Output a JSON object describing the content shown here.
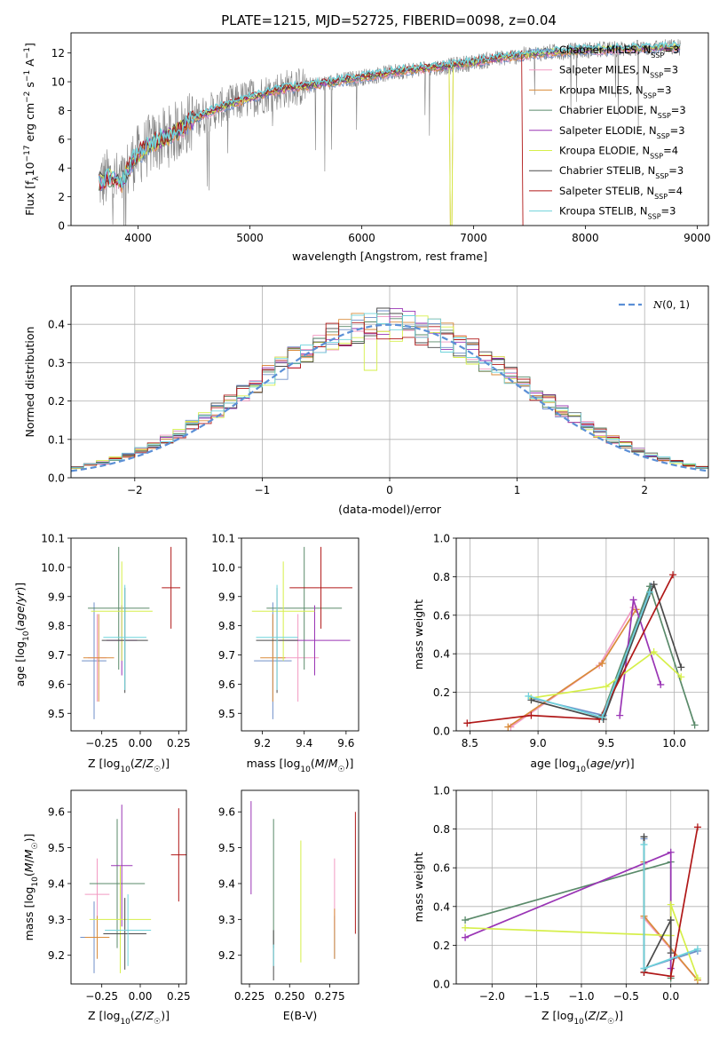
{
  "title": "PLATE=1215, MJD=52725, FIBERID=0098, z=0.04",
  "series": [
    {
      "name": "Chabrier MILES, N_SSP=3",
      "model": "Chabrier MILES, N",
      "nssp": "=3",
      "color": "#6f8fc8"
    },
    {
      "name": "Salpeter MILES, N_SSP=3",
      "model": "Salpeter MILES, N",
      "nssp": "=3",
      "color": "#f29ac2"
    },
    {
      "name": "Kroupa MILES, N_SSP=3",
      "model": "Kroupa MILES, N",
      "nssp": "=3",
      "color": "#d98b3a"
    },
    {
      "name": "Chabrier ELODIE, N_SSP=3",
      "model": "Chabrier ELODIE, N",
      "nssp": "=3",
      "color": "#5a8a6a"
    },
    {
      "name": "Salpeter ELODIE, N_SSP=3",
      "model": "Salpeter ELODIE, N",
      "nssp": "=3",
      "color": "#9a35b5"
    },
    {
      "name": "Kroupa ELODIE, N_SSP=4",
      "model": "Kroupa ELODIE, N",
      "nssp": "=4",
      "color": "#d6ef4a"
    },
    {
      "name": "Chabrier STELIB, N_SSP=3",
      "model": "Chabrier STELIB, N",
      "nssp": "=3",
      "color": "#4a4a4a"
    },
    {
      "name": "Salpeter STELIB, N_SSP=4",
      "model": "Salpeter STELIB, N",
      "nssp": "=4",
      "color": "#b01818"
    },
    {
      "name": "Kroupa STELIB, N_SSP=3",
      "model": "Kroupa STELIB, N",
      "nssp": "=3",
      "color": "#6fd3dc"
    }
  ],
  "chart_data": [
    {
      "id": "spectrum",
      "type": "line",
      "xlabel": "wavelength [Angstrom, rest frame]",
      "ylabel": "Flux [f_λ 10^-17 erg cm^-2 s^-1 A^-1]",
      "xlim": [
        3400,
        9100
      ],
      "ylim": [
        0,
        13.4
      ],
      "xticks": [
        4000,
        5000,
        6000,
        7000,
        8000,
        9000
      ],
      "yticks": [
        0,
        2,
        4,
        6,
        8,
        10,
        12
      ],
      "grid": false,
      "legend": "top-right",
      "continuum_anchors": {
        "x": [
          3650,
          3750,
          3850,
          3950,
          4100,
          4300,
          4500,
          4700,
          4900,
          5100,
          5300,
          5600,
          6000,
          6400,
          6800,
          7200,
          7600,
          8000,
          8400,
          8800
        ],
        "y": [
          3.0,
          3.3,
          2.9,
          4.5,
          5.6,
          6.3,
          7.4,
          8.1,
          8.6,
          9.1,
          9.5,
          9.8,
          10.3,
          10.8,
          11.1,
          11.6,
          12.0,
          12.2,
          12.3,
          12.4
        ]
      },
      "note_sharp_drops_at": [
        6800,
        7430
      ]
    },
    {
      "id": "residuals",
      "type": "histogram",
      "xlabel": "(data-model)/error",
      "ylabel": "Normed distribution",
      "xlim": [
        -2.5,
        2.5
      ],
      "ylim": [
        0,
        0.5
      ],
      "xticks": [
        -2,
        -1,
        0,
        1,
        2
      ],
      "yticks": [
        0.0,
        0.1,
        0.2,
        0.3,
        0.4
      ],
      "grid": true,
      "reference_curve": {
        "name": "N(0,1)",
        "mu": 0,
        "sigma": 1
      },
      "bin_width": 0.1
    },
    {
      "id": "age_vs_Z",
      "type": "errorbar",
      "xlabel": "Z [log10(Z/Z☉)]",
      "ylabel": "age  [log10(age/yr)]",
      "xlim": [
        -0.45,
        0.3
      ],
      "ylim": [
        9.44,
        10.1
      ],
      "xticks": [
        -0.25,
        0.0,
        0.25
      ],
      "yticks": [
        9.5,
        9.6,
        9.7,
        9.8,
        9.9,
        10.0,
        10.1
      ],
      "points": [
        {
          "s": 0,
          "x": -0.3,
          "y": 9.68,
          "xerr": 0.08,
          "yerr": 0.2
        },
        {
          "s": 1,
          "x": -0.28,
          "y": 9.69,
          "xerr": 0.06,
          "yerr": 0.15
        },
        {
          "s": 2,
          "x": -0.27,
          "y": 9.69,
          "xerr": 0.1,
          "yerr": 0.15
        },
        {
          "s": 3,
          "x": -0.14,
          "y": 9.86,
          "xerr": 0.2,
          "yerr": 0.21
        },
        {
          "s": 4,
          "x": -0.12,
          "y": 9.75,
          "xerr": 0.1,
          "yerr": 0.12
        },
        {
          "s": 5,
          "x": -0.12,
          "y": 9.85,
          "xerr": 0.2,
          "yerr": 0.17
        },
        {
          "s": 6,
          "x": -0.1,
          "y": 9.75,
          "xerr": 0.15,
          "yerr": 0.18
        },
        {
          "s": 7,
          "x": 0.2,
          "y": 9.93,
          "xerr": 0.06,
          "yerr": 0.14
        },
        {
          "s": 8,
          "x": -0.1,
          "y": 9.76,
          "xerr": 0.14,
          "yerr": 0.18
        }
      ]
    },
    {
      "id": "age_vs_mass",
      "type": "errorbar",
      "xlabel": "mass [log10(M/M☉)]",
      "ylabel": "",
      "xlim": [
        9.1,
        9.66
      ],
      "ylim": [
        9.44,
        10.1
      ],
      "xticks": [
        9.2,
        9.4,
        9.6
      ],
      "yticks": [
        9.5,
        9.6,
        9.7,
        9.8,
        9.9,
        10.0,
        10.1
      ],
      "points": [
        {
          "s": 0,
          "x": 9.25,
          "y": 9.68,
          "xerr": 0.09,
          "yerr": 0.2
        },
        {
          "s": 1,
          "x": 9.37,
          "y": 9.69,
          "xerr": 0.1,
          "yerr": 0.15
        },
        {
          "s": 2,
          "x": 9.25,
          "y": 9.69,
          "xerr": 0.06,
          "yerr": 0.15
        },
        {
          "s": 3,
          "x": 9.4,
          "y": 9.86,
          "xerr": 0.18,
          "yerr": 0.21
        },
        {
          "s": 4,
          "x": 9.45,
          "y": 9.75,
          "xerr": 0.17,
          "yerr": 0.12
        },
        {
          "s": 5,
          "x": 9.3,
          "y": 9.85,
          "xerr": 0.15,
          "yerr": 0.17
        },
        {
          "s": 6,
          "x": 9.27,
          "y": 9.75,
          "xerr": 0.1,
          "yerr": 0.18
        },
        {
          "s": 7,
          "x": 9.48,
          "y": 9.93,
          "xerr": 0.15,
          "yerr": 0.14
        },
        {
          "s": 8,
          "x": 9.27,
          "y": 9.76,
          "xerr": 0.1,
          "yerr": 0.18
        }
      ]
    },
    {
      "id": "weight_vs_age",
      "type": "line",
      "xlabel": "age  [log10(age/yr)]",
      "ylabel": "mass weight",
      "xlim": [
        8.4,
        10.25
      ],
      "ylim": [
        0,
        1.0
      ],
      "xticks": [
        8.5,
        9.0,
        9.5,
        10.0
      ],
      "yticks": [
        0.0,
        0.2,
        0.4,
        0.6,
        0.8,
        1.0
      ],
      "grid": true,
      "lines": [
        {
          "s": 0,
          "x": [
            8.95,
            9.48,
            9.83
          ],
          "y": [
            0.17,
            0.08,
            0.75
          ]
        },
        {
          "s": 1,
          "x": [
            8.8,
            9.45,
            9.7
          ],
          "y": [
            0.02,
            0.34,
            0.64
          ]
        },
        {
          "s": 2,
          "x": [
            8.78,
            9.47,
            9.72
          ],
          "y": [
            0.02,
            0.35,
            0.63
          ]
        },
        {
          "s": 3,
          "x": [
            9.47,
            9.82,
            10.15
          ],
          "y": [
            0.08,
            0.75,
            0.03
          ]
        },
        {
          "s": 4,
          "x": [
            9.6,
            9.7,
            9.9
          ],
          "y": [
            0.08,
            0.68,
            0.24
          ]
        },
        {
          "s": 5,
          "x": [
            8.95,
            9.5,
            9.85,
            10.05
          ],
          "y": [
            0.17,
            0.23,
            0.41,
            0.28
          ]
        },
        {
          "s": 6,
          "x": [
            8.95,
            9.48,
            9.85,
            10.05
          ],
          "y": [
            0.16,
            0.06,
            0.76,
            0.33
          ]
        },
        {
          "s": 7,
          "x": [
            8.48,
            8.95,
            9.45,
            9.99
          ],
          "y": [
            0.04,
            0.08,
            0.06,
            0.81
          ]
        },
        {
          "s": 8,
          "x": [
            8.93,
            9.47,
            9.82
          ],
          "y": [
            0.18,
            0.07,
            0.72
          ]
        }
      ]
    },
    {
      "id": "mass_vs_Z",
      "type": "errorbar",
      "xlabel": "Z [log10(Z/Z☉)]",
      "ylabel": "mass [log10(M/M☉)]",
      "xlim": [
        -0.45,
        0.3
      ],
      "ylim": [
        9.12,
        9.66
      ],
      "xticks": [
        -0.25,
        0.0,
        0.25
      ],
      "yticks": [
        9.2,
        9.3,
        9.4,
        9.5,
        9.6
      ],
      "points": [
        {
          "s": 0,
          "x": -0.3,
          "y": 9.25,
          "xerr": 0.09,
          "yerr": 0.1
        },
        {
          "s": 1,
          "x": -0.28,
          "y": 9.37,
          "xerr": 0.08,
          "yerr": 0.1
        },
        {
          "s": 2,
          "x": -0.28,
          "y": 9.25,
          "xerr": 0.08,
          "yerr": 0.06
        },
        {
          "s": 3,
          "x": -0.15,
          "y": 9.4,
          "xerr": 0.18,
          "yerr": 0.18
        },
        {
          "s": 4,
          "x": -0.12,
          "y": 9.45,
          "xerr": 0.07,
          "yerr": 0.17
        },
        {
          "s": 5,
          "x": -0.13,
          "y": 9.3,
          "xerr": 0.2,
          "yerr": 0.15
        },
        {
          "s": 6,
          "x": -0.1,
          "y": 9.26,
          "xerr": 0.14,
          "yerr": 0.1
        },
        {
          "s": 7,
          "x": 0.25,
          "y": 9.48,
          "xerr": 0.05,
          "yerr": 0.13
        },
        {
          "s": 8,
          "x": -0.08,
          "y": 9.27,
          "xerr": 0.15,
          "yerr": 0.1
        }
      ]
    },
    {
      "id": "mass_vs_ebv",
      "type": "errorbar",
      "xlabel": "E(B-V)",
      "ylabel": "",
      "xlim": [
        0.22,
        0.293
      ],
      "ylim": [
        9.12,
        9.66
      ],
      "xticks": [
        0.225,
        0.25,
        0.275
      ],
      "yticks": [
        9.2,
        9.3,
        9.4,
        9.5,
        9.6
      ],
      "points": [
        {
          "s": 0,
          "x": 0.278,
          "y": 9.25,
          "xerr": 0,
          "yerr": 0.06
        },
        {
          "s": 1,
          "x": 0.278,
          "y": 9.37,
          "xerr": 0,
          "yerr": 0.1
        },
        {
          "s": 2,
          "x": 0.278,
          "y": 9.26,
          "xerr": 0,
          "yerr": 0.07
        },
        {
          "s": 3,
          "x": 0.24,
          "y": 9.4,
          "xerr": 0,
          "yerr": 0.18
        },
        {
          "s": 4,
          "x": 0.226,
          "y": 9.5,
          "xerr": 0,
          "yerr": 0.13
        },
        {
          "s": 5,
          "x": 0.257,
          "y": 9.35,
          "xerr": 0,
          "yerr": 0.17
        },
        {
          "s": 6,
          "x": 0.24,
          "y": 9.2,
          "xerr": 0,
          "yerr": 0.07
        },
        {
          "s": 7,
          "x": 0.291,
          "y": 9.43,
          "xerr": 0,
          "yerr": 0.17
        },
        {
          "s": 8,
          "x": 0.24,
          "y": 9.2,
          "xerr": 0,
          "yerr": 0.03
        }
      ]
    },
    {
      "id": "weight_vs_Z",
      "type": "line",
      "xlabel": "Z [log10(Z/Z☉)]",
      "ylabel": "mass weight",
      "xlim": [
        -2.4,
        0.42
      ],
      "ylim": [
        0,
        1.0
      ],
      "xticks": [
        -2.0,
        -1.5,
        -1.0,
        -0.5,
        0.0
      ],
      "yticks": [
        0.0,
        0.2,
        0.4,
        0.6,
        0.8,
        1.0
      ],
      "grid": true,
      "lines": [
        {
          "s": 0,
          "x": [
            -0.3,
            -0.3,
            0.3
          ],
          "y": [
            0.75,
            0.08,
            0.17
          ]
        },
        {
          "s": 1,
          "x": [
            -0.3,
            -0.3,
            0.3
          ],
          "y": [
            0.62,
            0.34,
            0.02
          ]
        },
        {
          "s": 2,
          "x": [
            -0.3,
            -0.3,
            0.3
          ],
          "y": [
            0.63,
            0.35,
            0.02
          ]
        },
        {
          "s": 3,
          "x": [
            -2.3,
            0.0,
            0.0
          ],
          "y": [
            0.33,
            0.63,
            0.03
          ]
        },
        {
          "s": 4,
          "x": [
            -2.3,
            0.0,
            0.0
          ],
          "y": [
            0.24,
            0.68,
            0.08
          ]
        },
        {
          "s": 5,
          "x": [
            -2.3,
            0.0,
            0.0,
            0.3
          ],
          "y": [
            0.29,
            0.25,
            0.41,
            0.03
          ]
        },
        {
          "s": 6,
          "x": [
            -0.3,
            -0.3,
            0.0,
            0.0
          ],
          "y": [
            0.76,
            0.06,
            0.33,
            0.16
          ]
        },
        {
          "s": 7,
          "x": [
            -0.3,
            0.0,
            0.3
          ],
          "y": [
            0.06,
            0.04,
            0.81
          ]
        },
        {
          "s": 8,
          "x": [
            -0.3,
            -0.3,
            0.3
          ],
          "y": [
            0.72,
            0.08,
            0.18
          ]
        }
      ]
    }
  ]
}
